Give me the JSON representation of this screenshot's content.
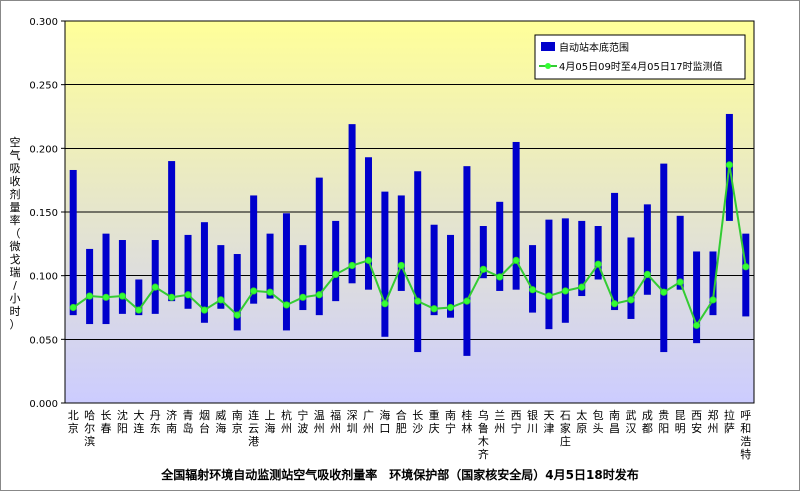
{
  "chart_data": {
    "type": "bar",
    "ylabel": "空气吸收剂量率（微戈瑞/小时）",
    "caption": "全国辐射环境自动监测站空气吸收剂量率　环境保护部（国家核安全局）4月5日18时发布",
    "ylim": [
      0,
      0.3
    ],
    "yticks": [
      "0.000",
      "0.050",
      "0.100",
      "0.150",
      "0.200",
      "0.250",
      "0.300"
    ],
    "grid": true,
    "legend_position": "top-right",
    "colors": {
      "range_bar": "#0000cc",
      "line": "#33cc33",
      "marker": "#33ff33",
      "bg_top": "#ffff99",
      "bg_bottom": "#ccccff"
    },
    "categories": [
      "北京",
      "哈尔滨",
      "长春",
      "沈阳",
      "大连",
      "丹东",
      "济南",
      "青岛",
      "烟台",
      "威海",
      "南京",
      "连云港",
      "上海",
      "杭州",
      "宁波",
      "温州",
      "福州",
      "深圳",
      "广州",
      "海口",
      "合肥",
      "长沙",
      "重庆",
      "南宁",
      "桂林",
      "乌鲁木齐",
      "兰州",
      "西宁",
      "银川",
      "天津",
      "石家庄",
      "太原",
      "包头",
      "南昌",
      "武汉",
      "成都",
      "贵阳",
      "昆明",
      "西安",
      "郑州",
      "拉萨",
      "呼和浩特"
    ],
    "series": [
      {
        "name": "自动站本底范围",
        "low": [
          0.069,
          0.062,
          0.062,
          0.07,
          0.069,
          0.07,
          0.08,
          0.074,
          0.063,
          0.074,
          0.057,
          0.078,
          0.082,
          0.057,
          0.073,
          0.069,
          0.08,
          0.094,
          0.089,
          0.052,
          0.088,
          0.04,
          0.069,
          0.067,
          0.037,
          0.098,
          0.088,
          0.089,
          0.071,
          0.058,
          0.063,
          0.084,
          0.097,
          0.073,
          0.066,
          0.085,
          0.04,
          0.089,
          0.047,
          0.069,
          0.143,
          0.068
        ],
        "high": [
          0.183,
          0.121,
          0.133,
          0.128,
          0.097,
          0.128,
          0.19,
          0.132,
          0.142,
          0.124,
          0.117,
          0.163,
          0.133,
          0.149,
          0.124,
          0.177,
          0.143,
          0.219,
          0.193,
          0.166,
          0.163,
          0.182,
          0.14,
          0.132,
          0.186,
          0.139,
          0.158,
          0.205,
          0.124,
          0.144,
          0.145,
          0.143,
          0.139,
          0.165,
          0.13,
          0.156,
          0.188,
          0.147,
          0.119,
          0.119,
          0.227,
          0.133
        ]
      },
      {
        "name": "4月05日09时至4月05日17时监测值",
        "values": [
          0.075,
          0.084,
          0.083,
          0.084,
          0.073,
          0.091,
          0.083,
          0.085,
          0.073,
          0.081,
          0.069,
          0.088,
          0.087,
          0.077,
          0.083,
          0.085,
          0.101,
          0.108,
          0.112,
          0.078,
          0.108,
          0.08,
          0.074,
          0.075,
          0.08,
          0.105,
          0.099,
          0.112,
          0.089,
          0.084,
          0.088,
          0.091,
          0.109,
          0.078,
          0.081,
          0.101,
          0.087,
          0.095,
          0.061,
          0.081,
          0.187,
          0.107
        ]
      }
    ]
  }
}
